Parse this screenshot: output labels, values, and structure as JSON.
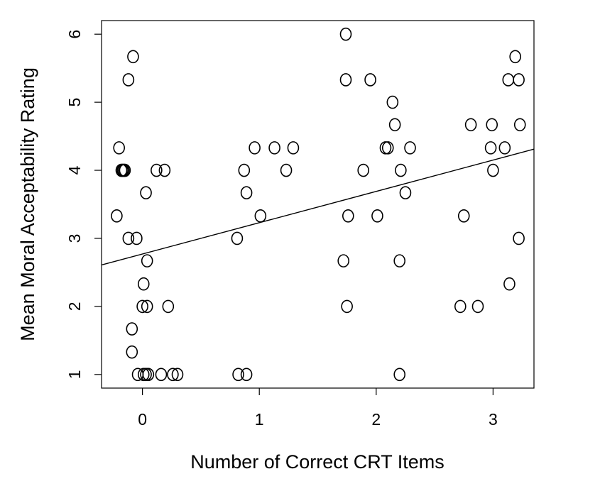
{
  "chart_data": {
    "type": "scatter",
    "xlabel": "Number of Correct CRT Items",
    "ylabel": "Mean Moral Acceptability Rating",
    "xlim": [
      -0.35,
      3.35
    ],
    "ylim": [
      0.8,
      6.2
    ],
    "x_ticks": [
      0,
      1,
      2,
      3
    ],
    "y_ticks": [
      1,
      2,
      3,
      4,
      5,
      6
    ],
    "x_tick_labels": [
      "0",
      "1",
      "2",
      "3"
    ],
    "y_tick_labels": [
      "1",
      "2",
      "3",
      "4",
      "5",
      "6"
    ],
    "grid": false,
    "legend": "none",
    "trendline": {
      "intercept": 2.77,
      "slope": 0.46
    },
    "points": [
      {
        "x": -0.22,
        "y": 3.33
      },
      {
        "x": -0.2,
        "y": 4.33
      },
      {
        "x": -0.18,
        "y": 4.0
      },
      {
        "x": -0.17,
        "y": 4.0
      },
      {
        "x": -0.16,
        "y": 4.0
      },
      {
        "x": -0.15,
        "y": 4.0
      },
      {
        "x": -0.12,
        "y": 5.33
      },
      {
        "x": -0.08,
        "y": 5.67
      },
      {
        "x": -0.12,
        "y": 3.0
      },
      {
        "x": -0.05,
        "y": 3.0
      },
      {
        "x": -0.09,
        "y": 1.67
      },
      {
        "x": -0.09,
        "y": 1.33
      },
      {
        "x": -0.04,
        "y": 1.0
      },
      {
        "x": 0.01,
        "y": 1.0
      },
      {
        "x": 0.03,
        "y": 1.0
      },
      {
        "x": 0.05,
        "y": 1.0
      },
      {
        "x": 0.0,
        "y": 2.0
      },
      {
        "x": 0.04,
        "y": 2.0
      },
      {
        "x": 0.01,
        "y": 2.33
      },
      {
        "x": 0.04,
        "y": 2.67
      },
      {
        "x": 0.03,
        "y": 3.67
      },
      {
        "x": 0.12,
        "y": 4.0
      },
      {
        "x": 0.19,
        "y": 4.0
      },
      {
        "x": 0.22,
        "y": 2.0
      },
      {
        "x": 0.16,
        "y": 1.0
      },
      {
        "x": 0.26,
        "y": 1.0
      },
      {
        "x": 0.3,
        "y": 1.0
      },
      {
        "x": 0.81,
        "y": 3.0
      },
      {
        "x": 0.82,
        "y": 1.0
      },
      {
        "x": 0.89,
        "y": 1.0
      },
      {
        "x": 0.87,
        "y": 4.0
      },
      {
        "x": 0.89,
        "y": 3.67
      },
      {
        "x": 0.96,
        "y": 4.33
      },
      {
        "x": 1.01,
        "y": 3.33
      },
      {
        "x": 1.13,
        "y": 4.33
      },
      {
        "x": 1.23,
        "y": 4.0
      },
      {
        "x": 1.29,
        "y": 4.33
      },
      {
        "x": 1.74,
        "y": 6.0
      },
      {
        "x": 1.74,
        "y": 5.33
      },
      {
        "x": 1.95,
        "y": 5.33
      },
      {
        "x": 1.72,
        "y": 2.67
      },
      {
        "x": 1.75,
        "y": 2.0
      },
      {
        "x": 1.76,
        "y": 3.33
      },
      {
        "x": 1.89,
        "y": 4.0
      },
      {
        "x": 2.01,
        "y": 3.33
      },
      {
        "x": 2.08,
        "y": 4.33
      },
      {
        "x": 2.1,
        "y": 4.33
      },
      {
        "x": 2.14,
        "y": 5.0
      },
      {
        "x": 2.16,
        "y": 4.67
      },
      {
        "x": 2.21,
        "y": 4.0
      },
      {
        "x": 2.29,
        "y": 4.33
      },
      {
        "x": 2.25,
        "y": 3.67
      },
      {
        "x": 2.2,
        "y": 2.67
      },
      {
        "x": 2.2,
        "y": 1.0
      },
      {
        "x": 2.72,
        "y": 2.0
      },
      {
        "x": 2.75,
        "y": 3.33
      },
      {
        "x": 2.81,
        "y": 4.67
      },
      {
        "x": 2.87,
        "y": 2.0
      },
      {
        "x": 2.98,
        "y": 4.33
      },
      {
        "x": 2.99,
        "y": 4.67
      },
      {
        "x": 3.0,
        "y": 4.0
      },
      {
        "x": 3.1,
        "y": 4.33
      },
      {
        "x": 3.13,
        "y": 5.33
      },
      {
        "x": 3.14,
        "y": 2.33
      },
      {
        "x": 3.19,
        "y": 5.67
      },
      {
        "x": 3.22,
        "y": 5.33
      },
      {
        "x": 3.22,
        "y": 3.0
      },
      {
        "x": 3.23,
        "y": 4.67
      }
    ]
  }
}
